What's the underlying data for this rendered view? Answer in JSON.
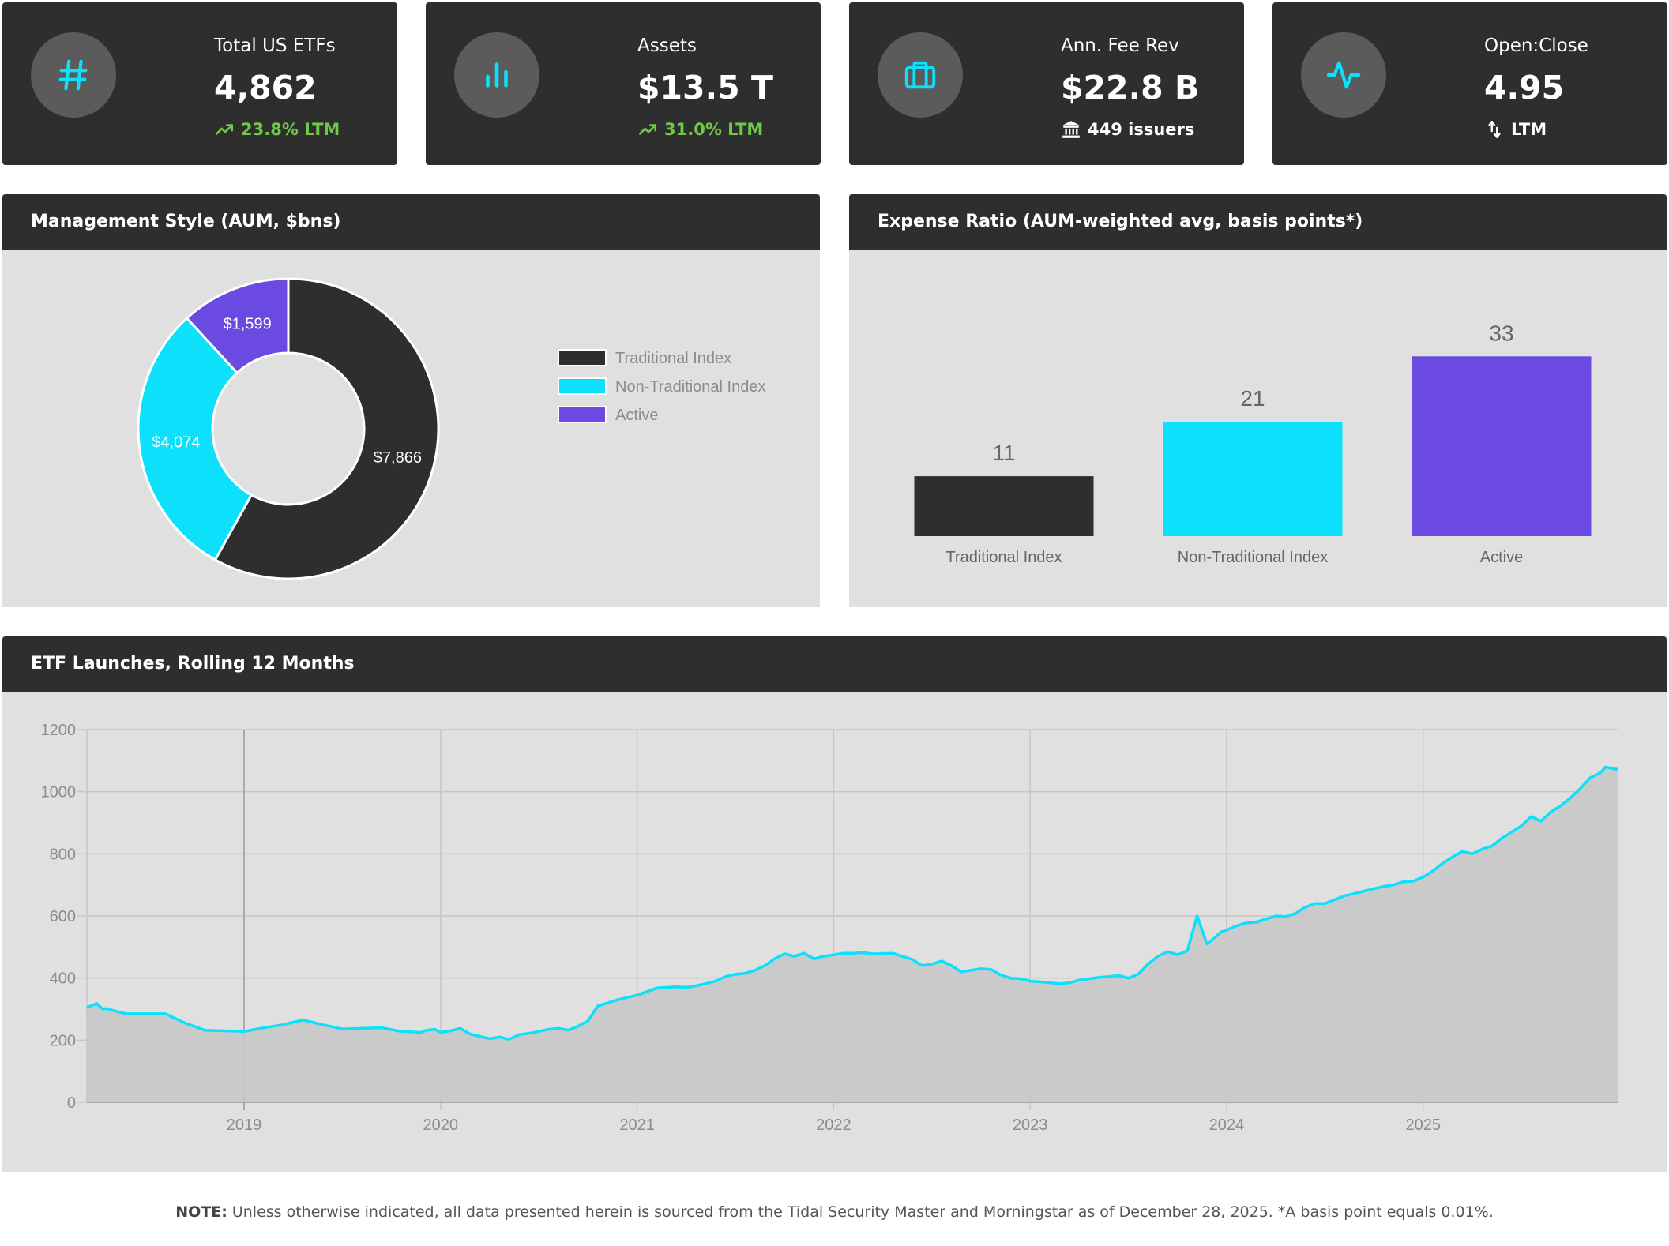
{
  "kpis": [
    {
      "label": "Total US ETFs",
      "value": "4,862",
      "sub": "23.8% LTM",
      "icon": "hash-icon",
      "sub_icon": "trending-up-icon"
    },
    {
      "label": "Assets",
      "value": "$13.5 T",
      "sub": "31.0% LTM",
      "icon": "bar-chart-icon",
      "sub_icon": "trending-up-icon"
    },
    {
      "label": "Ann. Fee Rev",
      "value": "$22.8 B",
      "sub": "449 issuers",
      "icon": "briefcase-icon",
      "sub_icon": "bank-icon"
    },
    {
      "label": "Open:Close",
      "value": "4.95",
      "sub": "LTM",
      "icon": "activity-icon",
      "sub_icon": "arrows-vertical-icon"
    }
  ],
  "colors": {
    "accent": "#0ce0fb",
    "dark": "#2f2e2f",
    "purple": "#6a4ae0",
    "green": "#6ec944",
    "panel_bg": "#e0e0e0",
    "area_fill": "#c8c8c8"
  },
  "management": {
    "title": "Management Style (AUM, $bns)"
  },
  "expense": {
    "title": "Expense Ratio (AUM-weighted avg, basis points*)"
  },
  "launches": {
    "title": "ETF Launches, Rolling 12 Months"
  },
  "chart_data": [
    {
      "type": "pie",
      "variant": "doughnut",
      "labels": [
        "Traditional Index",
        "Non-Traditional Index",
        "Active"
      ],
      "values": [
        7866,
        4074,
        1599
      ],
      "data_labels": [
        "$7,866",
        "$4,074",
        "$1,599"
      ],
      "colors": [
        "#2f2e2f",
        "#0ce0fb",
        "#6a4ae0"
      ],
      "legend": "right"
    },
    {
      "type": "bar",
      "categories": [
        "Traditional Index",
        "Non-Traditional Index",
        "Active"
      ],
      "values": [
        11,
        21,
        33
      ],
      "colors": [
        "#2f2e2f",
        "#0ce0fb",
        "#6a4ae0"
      ],
      "ylim": [
        0,
        40
      ]
    },
    {
      "type": "area",
      "ylim": [
        0,
        1200
      ],
      "yticks": [
        0,
        200,
        400,
        600,
        800,
        1000,
        1200
      ],
      "xlim": [
        2018.2,
        2025.99
      ],
      "xticks": [
        "2019",
        "2020",
        "2021",
        "2022",
        "2023",
        "2024",
        "2025"
      ],
      "grid": true,
      "series": [
        {
          "x": [
            2018.2,
            2018.25,
            2018.28,
            2018.3,
            2018.33,
            2018.4,
            2018.5,
            2018.6,
            2018.7,
            2018.8,
            2018.9,
            2019.0,
            2019.1,
            2019.2,
            2019.25,
            2019.3,
            2019.4,
            2019.5,
            2019.6,
            2019.7,
            2019.8,
            2019.9,
            2019.93,
            2019.97,
            2020.0,
            2020.05,
            2020.1,
            2020.15,
            2020.2,
            2020.25,
            2020.3,
            2020.35,
            2020.4,
            2020.45,
            2020.5,
            2020.55,
            2020.6,
            2020.65,
            2020.7,
            2020.75,
            2020.8,
            2020.9,
            2021.0,
            2021.1,
            2021.2,
            2021.25,
            2021.3,
            2021.35,
            2021.4,
            2021.45,
            2021.5,
            2021.55,
            2021.6,
            2021.65,
            2021.7,
            2021.75,
            2021.8,
            2021.85,
            2021.9,
            2021.95,
            2022.0,
            2022.05,
            2022.1,
            2022.15,
            2022.2,
            2022.3,
            2022.4,
            2022.45,
            2022.5,
            2022.55,
            2022.6,
            2022.65,
            2022.7,
            2022.75,
            2022.8,
            2022.85,
            2022.9,
            2022.95,
            2023.0,
            2023.05,
            2023.1,
            2023.15,
            2023.2,
            2023.25,
            2023.3,
            2023.35,
            2023.4,
            2023.45,
            2023.5,
            2023.55,
            2023.6,
            2023.65,
            2023.7,
            2023.75,
            2023.8,
            2023.85,
            2023.9,
            2023.92,
            2023.94,
            2023.97,
            2024.0,
            2024.05,
            2024.1,
            2024.15,
            2024.2,
            2024.25,
            2024.3,
            2024.35,
            2024.4,
            2024.45,
            2024.5,
            2024.55,
            2024.6,
            2024.65,
            2024.7,
            2024.75,
            2024.8,
            2024.85,
            2024.9,
            2024.95,
            2025.0,
            2025.05,
            2025.1,
            2025.15,
            2025.2,
            2025.25,
            2025.3,
            2025.35,
            2025.4,
            2025.45,
            2025.5,
            2025.55,
            2025.6,
            2025.65,
            2025.7,
            2025.75,
            2025.8,
            2025.85,
            2025.9,
            2025.93,
            2025.96,
            2025.99
          ],
          "y": [
            305,
            318,
            300,
            302,
            296,
            285,
            285,
            285,
            255,
            232,
            230,
            228,
            240,
            250,
            258,
            265,
            250,
            236,
            238,
            240,
            228,
            225,
            232,
            235,
            225,
            230,
            238,
            220,
            212,
            205,
            210,
            203,
            218,
            222,
            228,
            235,
            238,
            232,
            245,
            262,
            310,
            330,
            345,
            368,
            372,
            370,
            375,
            382,
            390,
            405,
            412,
            415,
            425,
            440,
            462,
            478,
            470,
            480,
            462,
            470,
            475,
            480,
            480,
            482,
            478,
            480,
            460,
            440,
            445,
            455,
            440,
            420,
            425,
            430,
            428,
            410,
            400,
            398,
            390,
            388,
            385,
            382,
            385,
            393,
            398,
            402,
            405,
            408,
            400,
            412,
            445,
            470,
            485,
            475,
            488,
            600,
            510,
            520,
            530,
            548,
            555,
            568,
            578,
            580,
            590,
            600,
            598,
            608,
            628,
            640,
            640,
            652,
            665,
            672,
            680,
            688,
            695,
            700,
            710,
            712,
            725,
            745,
            770,
            790,
            808,
            800,
            815,
            825,
            850,
            870,
            890,
            920,
            905,
            935,
            955,
            980,
            1010,
            1045,
            1060,
            1080,
            1075,
            1072
          ]
        }
      ]
    }
  ],
  "note": {
    "prefix": "NOTE:",
    "text": " Unless otherwise indicated, all data presented herein is sourced from the Tidal Security Master and Morningstar as of December 28, 2025. *A basis point equals 0.01%."
  }
}
